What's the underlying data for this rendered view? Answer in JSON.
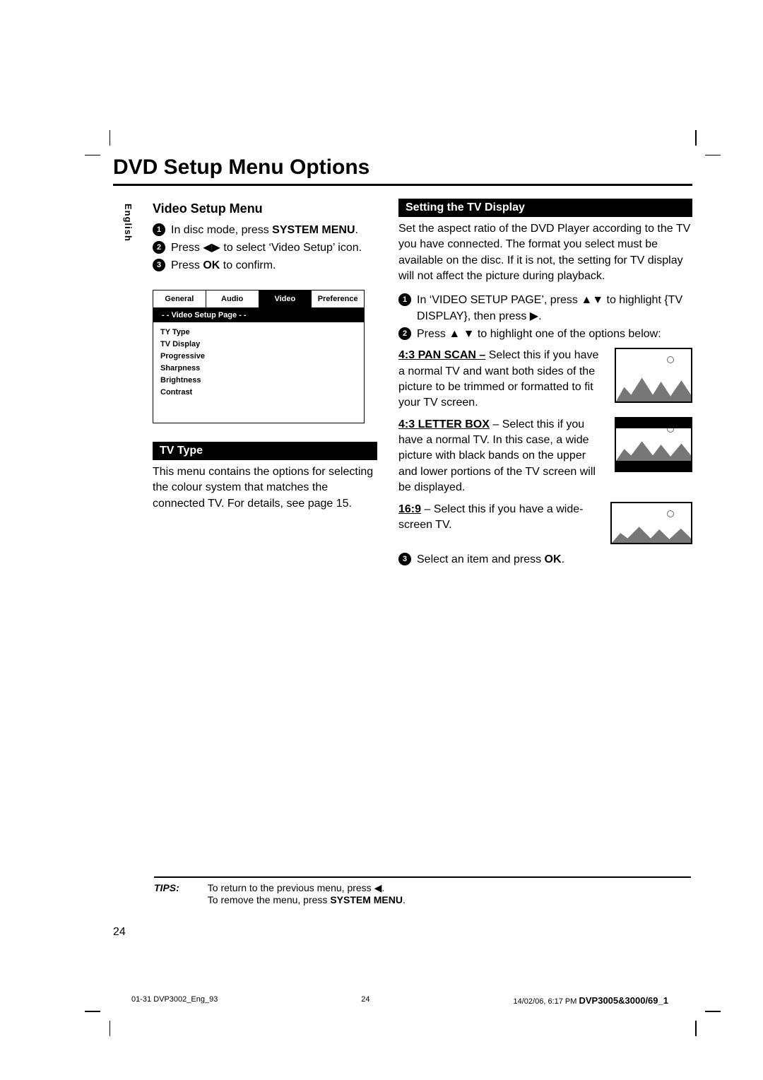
{
  "title": "DVD Setup Menu Options",
  "side_tab": "English",
  "left": {
    "heading": "Video Setup Menu",
    "steps": [
      {
        "n": "1",
        "html": "In disc mode, press <b>SYSTEM MENU</b>."
      },
      {
        "n": "2",
        "html": "Press <span class='arrow'>◀▶</span> to select ‘Video Setup’ icon."
      },
      {
        "n": "3",
        "html": "Press <b>OK</b> to confirm."
      }
    ],
    "menu": {
      "tabs": [
        "General",
        "Audio",
        "Video",
        "Preference"
      ],
      "active_tab_index": 2,
      "subhead": "- -   Video Setup Page   - -",
      "items": [
        "TY Type",
        "TV Display",
        "Progressive",
        "Sharpness",
        "Brightness",
        "Contrast"
      ]
    },
    "tvtype_bar": "TV Type",
    "tvtype_body": "This menu contains the options for selecting the colour system that matches the connected TV.  For details, see page 15."
  },
  "right": {
    "bar": "Setting the TV Display",
    "intro": "Set the aspect ratio of the DVD Player according to the TV you have connected. The format you select must be available on the disc.  If it is not, the setting for TV display will not affect the picture during playback.",
    "steps": [
      {
        "n": "1",
        "html": "In ‘VIDEO SETUP PAGE’, press <span class='arrow'>▲▼</span> to highlight {TV DISPLAY}, then press <span class='arrow'>▶</span>."
      },
      {
        "n": "2",
        "html": "Press <span class='arrow'>▲ ▼</span> to highlight one of the options below:"
      }
    ],
    "options": [
      {
        "name": "4:3 PAN SCAN –",
        "thumb": "pan",
        "body": "Select this if you have a normal TV and want both sides of the picture to be trimmed or formatted to fit your TV screen."
      },
      {
        "name": "4:3 LETTER BOX",
        "sep": " – ",
        "thumb": "letter",
        "body": "Select this if you have a normal TV. In this case, a wide picture with black bands on the upper and lower portions of the TV screen will be displayed."
      },
      {
        "name": "16:9",
        "sep": " – ",
        "thumb": "wide",
        "body": "Select this if you have a wide-screen TV."
      }
    ],
    "final_step": {
      "n": "3",
      "html": "Select an item and press <b>OK</b>."
    }
  },
  "tips": {
    "label": "TIPS:",
    "line1_html": "To return to the previous menu, press <span class='arrow'>◀</span>.",
    "line2_html": "To remove the menu, press <b>SYSTEM MENU</b>."
  },
  "page_number": "24",
  "footer": {
    "left": "01-31 DVP3002_Eng_93",
    "mid": "24",
    "right_a": "14/02/06, 6:17 PM",
    "right_b": "DVP3005&3000/69_1"
  }
}
